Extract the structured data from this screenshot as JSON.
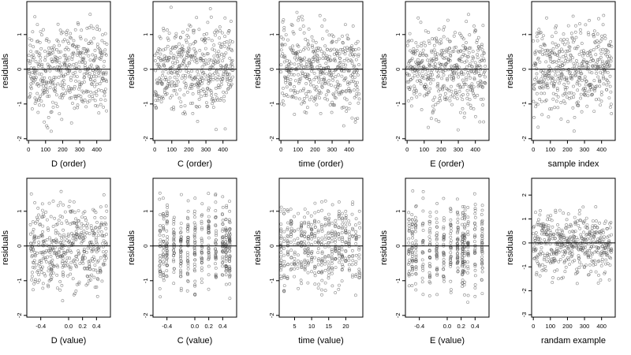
{
  "point_color": "#555555",
  "point_opacity": 0.7,
  "zero_line_color": "#000000",
  "chart_data": [
    {
      "type": "scatter",
      "xlabel": "D (order)",
      "ylabel": "residuals",
      "xlim": [
        -10,
        480
      ],
      "ylim": [
        -2.05,
        1.95
      ],
      "xticks": [
        0,
        100,
        200,
        300,
        400
      ],
      "xtick_labels": [
        "0",
        "100",
        "200",
        "300",
        "400"
      ],
      "yticks": [
        -2,
        -1,
        0,
        1
      ],
      "ytick_labels": [
        "-2",
        "-1",
        "0",
        "1"
      ],
      "ref_line_y": 0,
      "x_mode": "index",
      "n_points": 460,
      "seed": 11
    },
    {
      "type": "scatter",
      "xlabel": "C (order)",
      "ylabel": "residuals",
      "xlim": [
        -10,
        480
      ],
      "ylim": [
        -2.05,
        1.95
      ],
      "xticks": [
        0,
        100,
        200,
        300,
        400
      ],
      "xtick_labels": [
        "0",
        "100",
        "200",
        "300",
        "400"
      ],
      "yticks": [
        -2,
        -1,
        0,
        1
      ],
      "ytick_labels": [
        "-2",
        "-1",
        "0",
        "1"
      ],
      "ref_line_y": 0,
      "x_mode": "index",
      "n_points": 460,
      "seed": 22
    },
    {
      "type": "scatter",
      "xlabel": "time (order)",
      "ylabel": "residuals",
      "xlim": [
        -10,
        480
      ],
      "ylim": [
        -2.05,
        1.95
      ],
      "xticks": [
        0,
        100,
        200,
        300,
        400
      ],
      "xtick_labels": [
        "0",
        "100",
        "200",
        "300",
        "400"
      ],
      "yticks": [
        -2,
        -1,
        0,
        1
      ],
      "ytick_labels": [
        "-2",
        "-1",
        "0",
        "1"
      ],
      "ref_line_y": 0,
      "x_mode": "index",
      "n_points": 460,
      "seed": 33
    },
    {
      "type": "scatter",
      "xlabel": "E (order)",
      "ylabel": "residuals",
      "xlim": [
        -10,
        480
      ],
      "ylim": [
        -2.05,
        1.95
      ],
      "xticks": [
        0,
        100,
        200,
        300,
        400
      ],
      "xtick_labels": [
        "0",
        "100",
        "200",
        "300",
        "400"
      ],
      "yticks": [
        -2,
        -1,
        0,
        1
      ],
      "ytick_labels": [
        "-2",
        "-1",
        "0",
        "1"
      ],
      "ref_line_y": 0,
      "x_mode": "index",
      "n_points": 460,
      "seed": 44
    },
    {
      "type": "scatter",
      "xlabel": "sample index",
      "ylabel": "residuals",
      "xlim": [
        -10,
        480
      ],
      "ylim": [
        -2.05,
        1.95
      ],
      "xticks": [
        0,
        100,
        200,
        300,
        400
      ],
      "xtick_labels": [
        "0",
        "100",
        "200",
        "300",
        "400"
      ],
      "yticks": [
        -2,
        -1,
        0,
        1
      ],
      "ytick_labels": [
        "-2",
        "-1",
        "0",
        "1"
      ],
      "ref_line_y": 0,
      "x_mode": "index",
      "n_points": 460,
      "seed": 55
    },
    {
      "type": "scatter",
      "xlabel": "D (value)",
      "ylabel": "residuals",
      "xlim": [
        -0.6,
        0.6
      ],
      "ylim": [
        -2.05,
        1.95
      ],
      "xticks": [
        -0.4,
        0,
        0.2,
        0.4
      ],
      "xtick_labels": [
        "-0.4",
        "0.0",
        "0.2",
        "0.4"
      ],
      "yticks": [
        -2,
        -1,
        0,
        1
      ],
      "ytick_labels": [
        "-2",
        "-1",
        "0",
        "1"
      ],
      "ref_line_y": 0,
      "x_mode": "uniform",
      "x_range": [
        -0.55,
        0.55
      ],
      "n_points": 460,
      "seed": 66
    },
    {
      "type": "scatter",
      "xlabel": "C (value)",
      "ylabel": "residuals",
      "xlim": [
        -0.6,
        0.6
      ],
      "ylim": [
        -2.05,
        1.95
      ],
      "xticks": [
        -0.4,
        0,
        0.2,
        0.4
      ],
      "xtick_labels": [
        "-0.4",
        "0.0",
        "0.2",
        "0.4"
      ],
      "yticks": [
        -2,
        -1,
        0,
        1
      ],
      "ytick_labels": [
        "-2",
        "-1",
        "0",
        "1"
      ],
      "ref_line_y": 0,
      "x_mode": "clusters",
      "x_levels": [
        -0.5,
        -0.45,
        -0.4,
        -0.3,
        -0.2,
        -0.1,
        0,
        0.1,
        0.2,
        0.3,
        0.4,
        0.45,
        0.5
      ],
      "n_points": 460,
      "seed": 77
    },
    {
      "type": "scatter",
      "xlabel": "time (value)",
      "ylabel": "residuals",
      "xlim": [
        0.5,
        25
      ],
      "ylim": [
        -2.05,
        1.95
      ],
      "xticks": [
        5,
        10,
        15,
        20
      ],
      "xtick_labels": [
        "5",
        "10",
        "15",
        "20"
      ],
      "yticks": [
        -2,
        -1,
        0,
        1
      ],
      "ytick_labels": [
        "-2",
        "-1",
        "0",
        "1"
      ],
      "ref_line_y": 0,
      "x_mode": "clusters",
      "x_levels": [
        1,
        2,
        3,
        4,
        5,
        6,
        7,
        8,
        9,
        10,
        11,
        12,
        13,
        14,
        15,
        16,
        17,
        18,
        19,
        20,
        21,
        22,
        23,
        24
      ],
      "n_points": 460,
      "seed": 88
    },
    {
      "type": "scatter",
      "xlabel": "E (value)",
      "ylabel": "residuals",
      "xlim": [
        -0.6,
        0.6
      ],
      "ylim": [
        -2.05,
        1.95
      ],
      "xticks": [
        -0.4,
        0,
        0.2,
        0.4
      ],
      "xtick_labels": [
        "-0.4",
        "0.0",
        "0.2",
        "0.4"
      ],
      "yticks": [
        -2,
        -1,
        0,
        1
      ],
      "ytick_labels": [
        "-2",
        "-1",
        "0",
        "1"
      ],
      "ref_line_y": 0,
      "x_mode": "clusters",
      "x_levels": [
        -0.55,
        -0.5,
        -0.45,
        -0.35,
        -0.25,
        -0.15,
        -0.05,
        0.05,
        0.15,
        0.22,
        0.25,
        0.3,
        0.4,
        0.5
      ],
      "n_points": 460,
      "seed": 99
    },
    {
      "type": "scatter",
      "xlabel": "randam example",
      "ylabel": "residuals",
      "xlim": [
        -10,
        480
      ],
      "ylim": [
        -3.1,
        2.7
      ],
      "xticks": [
        0,
        100,
        200,
        300,
        400
      ],
      "xtick_labels": [
        "0",
        "100",
        "200",
        "300",
        "400"
      ],
      "yticks": [
        -3,
        -2,
        -1,
        0,
        1,
        2
      ],
      "ytick_labels": [
        "-3",
        "-2",
        "-1",
        "0",
        "1",
        "2"
      ],
      "ref_line_y": 0,
      "x_mode": "index",
      "n_points": 460,
      "seed": 111
    }
  ]
}
